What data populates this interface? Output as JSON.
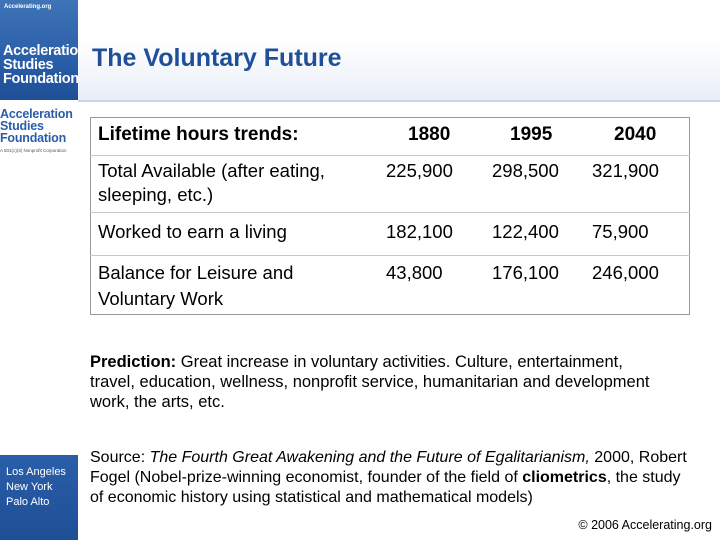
{
  "sidebar": {
    "url": "Accelerating.org",
    "logo_lines": [
      "Acceleration",
      "Studies",
      "Foundation"
    ],
    "org_lines": [
      "Acceleration",
      "Studies",
      "Foundation"
    ],
    "org_sub": "A 501(c)(3) Nonprofit Corporation",
    "cities": [
      "Los Angeles",
      "New York",
      "Palo Alto"
    ]
  },
  "title": "The Voluntary Future",
  "table": {
    "headers": [
      "Lifetime hours trends:",
      "1880",
      "1995",
      "2040"
    ],
    "rows": [
      {
        "label_lines": [
          "Total Available (after eating,",
          "sleeping, etc.)"
        ],
        "v1880": "225,900",
        "v1995": "298,500",
        "v2040": "321,900"
      },
      {
        "label_lines": [
          "Worked to earn a living"
        ],
        "v1880": "182,100",
        "v1995": "122,400",
        "v2040": "75,900"
      },
      {
        "label_lines": [
          "Balance for Leisure and",
          "Voluntary Work"
        ],
        "v1880": "43,800",
        "v1995": "176,100",
        "v2040": "246,000"
      }
    ]
  },
  "prediction": {
    "label": "Prediction:",
    "text": " Great increase in voluntary activities. Culture, entertainment, travel, education, wellness, nonprofit service, humanitarian and development work, the arts, etc."
  },
  "source": {
    "prefix": "Source: ",
    "book": "The Fourth Great Awakening and the Future of Egalitarianism,",
    "middle": " 2000, Robert Fogel (Nobel-prize-winning economist, founder of the field of ",
    "term": "cliometrics",
    "suffix": ", the study of economic history using statistical and mathematical models)"
  },
  "copyright": "© 2006 Accelerating.org"
}
